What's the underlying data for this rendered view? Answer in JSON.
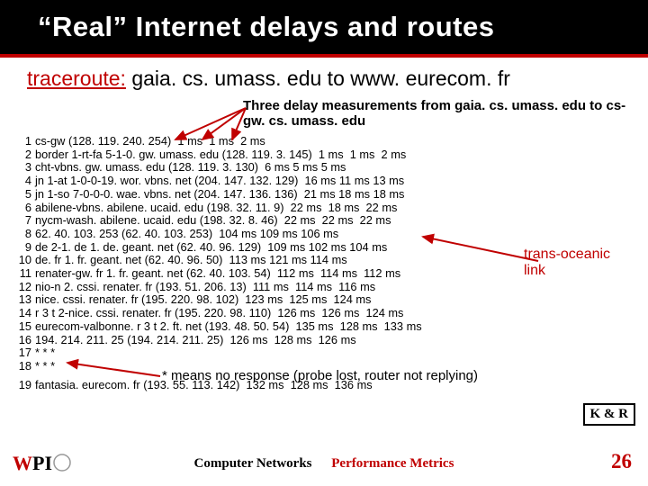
{
  "title": "“Real” Internet delays and routes",
  "subtitle": {
    "prog": "traceroute:",
    "rest": " gaia. cs. umass. edu to www. eurecom. fr"
  },
  "annotations": {
    "top": "Three delay measurements from gaia. cs. umass. edu to cs-gw. cs. umass. edu",
    "trans": "trans-oceanic link",
    "star": "* means no response (probe lost, router not replying)"
  },
  "traceroute_lines": [
    {
      "n": "1",
      "t": "cs-gw (128. 119. 240. 254)  1 ms  1 ms  2 ms"
    },
    {
      "n": "2",
      "t": "border 1-rt-fa 5-1-0. gw. umass. edu (128. 119. 3. 145)  1 ms  1 ms  2 ms"
    },
    {
      "n": "3",
      "t": "cht-vbns. gw. umass. edu (128. 119. 3. 130)  6 ms 5 ms 5 ms"
    },
    {
      "n": "4",
      "t": "jn 1-at 1-0-0-19. wor. vbns. net (204. 147. 132. 129)  16 ms 11 ms 13 ms"
    },
    {
      "n": "5",
      "t": "jn 1-so 7-0-0-0. wae. vbns. net (204. 147. 136. 136)  21 ms 18 ms 18 ms"
    },
    {
      "n": "6",
      "t": "abilene-vbns. abilene. ucaid. edu (198. 32. 11. 9)  22 ms  18 ms  22 ms"
    },
    {
      "n": "7",
      "t": "nycm-wash. abilene. ucaid. edu (198. 32. 8. 46)  22 ms  22 ms  22 ms"
    },
    {
      "n": "8",
      "t": "62. 40. 103. 253 (62. 40. 103. 253)  104 ms 109 ms 106 ms"
    },
    {
      "n": "9",
      "t": "de 2-1. de 1. de. geant. net (62. 40. 96. 129)  109 ms 102 ms 104 ms"
    },
    {
      "n": "10",
      "t": "de. fr 1. fr. geant. net (62. 40. 96. 50)  113 ms 121 ms 114 ms"
    },
    {
      "n": "11",
      "t": "renater-gw. fr 1. fr. geant. net (62. 40. 103. 54)  112 ms  114 ms  112 ms"
    },
    {
      "n": "12",
      "t": "nio-n 2. cssi. renater. fr (193. 51. 206. 13)  111 ms  114 ms  116 ms"
    },
    {
      "n": "13",
      "t": "nice. cssi. renater. fr (195. 220. 98. 102)  123 ms  125 ms  124 ms"
    },
    {
      "n": "14",
      "t": "r 3 t 2-nice. cssi. renater. fr (195. 220. 98. 110)  126 ms  126 ms  124 ms"
    },
    {
      "n": "15",
      "t": "eurecom-valbonne. r 3 t 2. ft. net (193. 48. 50. 54)  135 ms  128 ms  133 ms"
    },
    {
      "n": "16",
      "t": "194. 214. 211. 25 (194. 214. 211. 25)  126 ms  128 ms  126 ms"
    },
    {
      "n": "17",
      "t": "* * *"
    },
    {
      "n": "18",
      "t": "* * *"
    }
  ],
  "traceroute_last": {
    "n": "19",
    "t": "fantasia. eurecom. fr (193. 55. 113. 142)  132 ms  128 ms  136 ms"
  },
  "footer": {
    "t1": "Computer Networks",
    "t2": "Performance Metrics",
    "page": "26",
    "kr": "K & R"
  },
  "colors": {
    "accent": "#c00000",
    "arrow_stroke": "#c00000"
  }
}
